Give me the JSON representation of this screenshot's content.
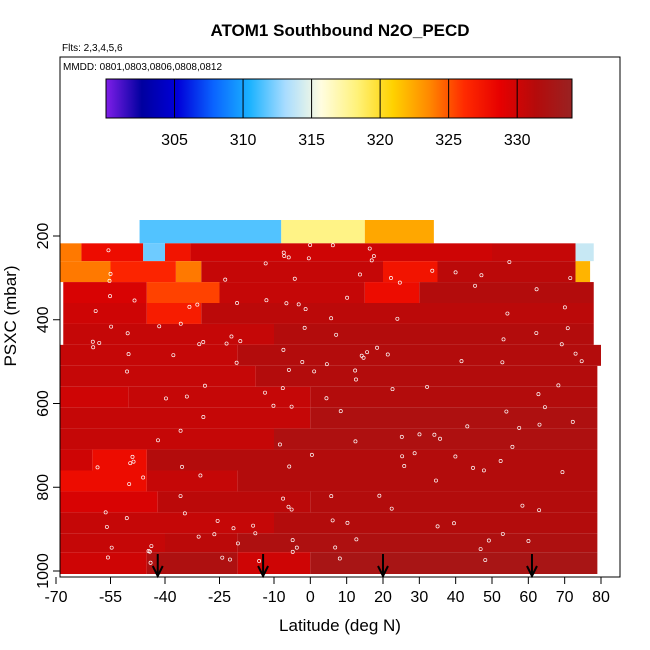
{
  "chart_data": {
    "type": "heatmap",
    "title": "ATOM1 Southbound N2O_PECD",
    "flights_note": "Flts: 2,3,4,5,6",
    "dates_note": "MMDD: 0801,0803,0806,0808,0812",
    "xlabel": "Latitude (deg N)",
    "ylabel": "PSXC (mbar)",
    "xlim": [
      -70,
      80
    ],
    "ylim": [
      1000,
      50
    ],
    "y_reversed": true,
    "grid": false,
    "x_ticks": [
      -70,
      -55,
      -40,
      -25,
      -10,
      0,
      10,
      20,
      30,
      40,
      50,
      60,
      70,
      80
    ],
    "y_ticks": [
      200,
      400,
      600,
      800,
      1000
    ],
    "colorbar": {
      "placement": "top",
      "range": [
        300,
        334
      ],
      "ticks": [
        305,
        310,
        315,
        320,
        325,
        330
      ],
      "colors": [
        "#7f1ee8",
        "#00009f",
        "#0000d9",
        "#0a64ff",
        "#1ab2ff",
        "#a8dcff",
        "#fffde0",
        "#fff27a",
        "#ffd200",
        "#ff8a00",
        "#ff2a00",
        "#e60000",
        "#b40b0b",
        "#992222"
      ]
    },
    "layers": [
      {
        "p": 200,
        "cells": [
          {
            "lat0": -47,
            "lat1": -8,
            "v": 311.5
          },
          {
            "lat0": -8,
            "lat1": 15,
            "v": 318
          },
          {
            "lat0": 15,
            "lat1": 34,
            "v": 322.5
          }
        ]
      },
      {
        "p": 235,
        "cells": [
          {
            "lat0": -69,
            "lat1": -63,
            "v": 324
          },
          {
            "lat0": -63,
            "lat1": -46,
            "v": 328
          },
          {
            "lat0": -46,
            "lat1": -40,
            "v": 312
          },
          {
            "lat0": -40,
            "lat1": -33,
            "v": 327.5
          },
          {
            "lat0": -33,
            "lat1": 50,
            "v": 330
          },
          {
            "lat0": 50,
            "lat1": 73,
            "v": 330.5
          },
          {
            "lat0": 73,
            "lat1": 78,
            "v": 314
          }
        ]
      },
      {
        "p": 285,
        "cells": [
          {
            "lat0": -69,
            "lat1": -55,
            "v": 324
          },
          {
            "lat0": -55,
            "lat1": -37,
            "v": 326.5
          },
          {
            "lat0": -37,
            "lat1": -30,
            "v": 324
          },
          {
            "lat0": -30,
            "lat1": 20,
            "v": 330.5
          },
          {
            "lat0": 20,
            "lat1": 35,
            "v": 327.5
          },
          {
            "lat0": 35,
            "lat1": 73,
            "v": 331
          },
          {
            "lat0": 73,
            "lat1": 77,
            "v": 322
          }
        ]
      },
      {
        "p": 335,
        "cells": [
          {
            "lat0": -68,
            "lat1": -45,
            "v": 329.5
          },
          {
            "lat0": -45,
            "lat1": -25,
            "v": 325.5
          },
          {
            "lat0": -25,
            "lat1": 15,
            "v": 330.5
          },
          {
            "lat0": 15,
            "lat1": 30,
            "v": 328
          },
          {
            "lat0": 30,
            "lat1": 78,
            "v": 331.5
          }
        ]
      },
      {
        "p": 385,
        "cells": [
          {
            "lat0": -68,
            "lat1": -45,
            "v": 330
          },
          {
            "lat0": -45,
            "lat1": -30,
            "v": 327
          },
          {
            "lat0": -30,
            "lat1": 78,
            "v": 331
          }
        ]
      },
      {
        "p": 435,
        "cells": [
          {
            "lat0": -68,
            "lat1": -10,
            "v": 330.5
          },
          {
            "lat0": -10,
            "lat1": 78,
            "v": 331.5
          }
        ]
      },
      {
        "p": 485,
        "cells": [
          {
            "lat0": -69,
            "lat1": -20,
            "v": 330.5
          },
          {
            "lat0": -20,
            "lat1": 80,
            "v": 331.5
          }
        ]
      },
      {
        "p": 535,
        "cells": [
          {
            "lat0": -69,
            "lat1": -15,
            "v": 330.5
          },
          {
            "lat0": -15,
            "lat1": 79,
            "v": 331.5
          }
        ]
      },
      {
        "p": 585,
        "cells": [
          {
            "lat0": -69,
            "lat1": -50,
            "v": 330
          },
          {
            "lat0": -50,
            "lat1": 0,
            "v": 330.5
          },
          {
            "lat0": 0,
            "lat1": 79,
            "v": 331.5
          }
        ]
      },
      {
        "p": 635,
        "cells": [
          {
            "lat0": -69,
            "lat1": 0,
            "v": 330.5
          },
          {
            "lat0": 0,
            "lat1": 79,
            "v": 332
          }
        ]
      },
      {
        "p": 685,
        "cells": [
          {
            "lat0": -69,
            "lat1": -10,
            "v": 330.5
          },
          {
            "lat0": -10,
            "lat1": 79,
            "v": 332
          }
        ]
      },
      {
        "p": 735,
        "cells": [
          {
            "lat0": -69,
            "lat1": -60,
            "v": 330
          },
          {
            "lat0": -60,
            "lat1": -45,
            "v": 328
          },
          {
            "lat0": -45,
            "lat1": 79,
            "v": 331.5
          }
        ]
      },
      {
        "p": 785,
        "cells": [
          {
            "lat0": -69,
            "lat1": -45,
            "v": 328
          },
          {
            "lat0": -45,
            "lat1": -20,
            "v": 330.5
          },
          {
            "lat0": -20,
            "lat1": 79,
            "v": 331.5
          }
        ]
      },
      {
        "p": 835,
        "cells": [
          {
            "lat0": -69,
            "lat1": -42,
            "v": 329.5
          },
          {
            "lat0": -42,
            "lat1": 0,
            "v": 331
          },
          {
            "lat0": 0,
            "lat1": 79,
            "v": 331.5
          }
        ]
      },
      {
        "p": 885,
        "cells": [
          {
            "lat0": -69,
            "lat1": -10,
            "v": 330.5
          },
          {
            "lat0": -10,
            "lat1": 79,
            "v": 331.5
          }
        ]
      },
      {
        "p": 935,
        "cells": [
          {
            "lat0": -69,
            "lat1": -40,
            "v": 330.5
          },
          {
            "lat0": -40,
            "lat1": -20,
            "v": 331
          },
          {
            "lat0": -20,
            "lat1": 79,
            "v": 332
          }
        ]
      },
      {
        "p": 975,
        "cells": [
          {
            "lat0": -69,
            "lat1": -45,
            "v": 330
          },
          {
            "lat0": -45,
            "lat1": -20,
            "v": 332
          },
          {
            "lat0": -20,
            "lat1": 0,
            "v": 330
          },
          {
            "lat0": 0,
            "lat1": 79,
            "v": 332.5
          }
        ]
      }
    ],
    "profile_markers_lat": [
      -42,
      -13,
      20,
      61
    ]
  }
}
